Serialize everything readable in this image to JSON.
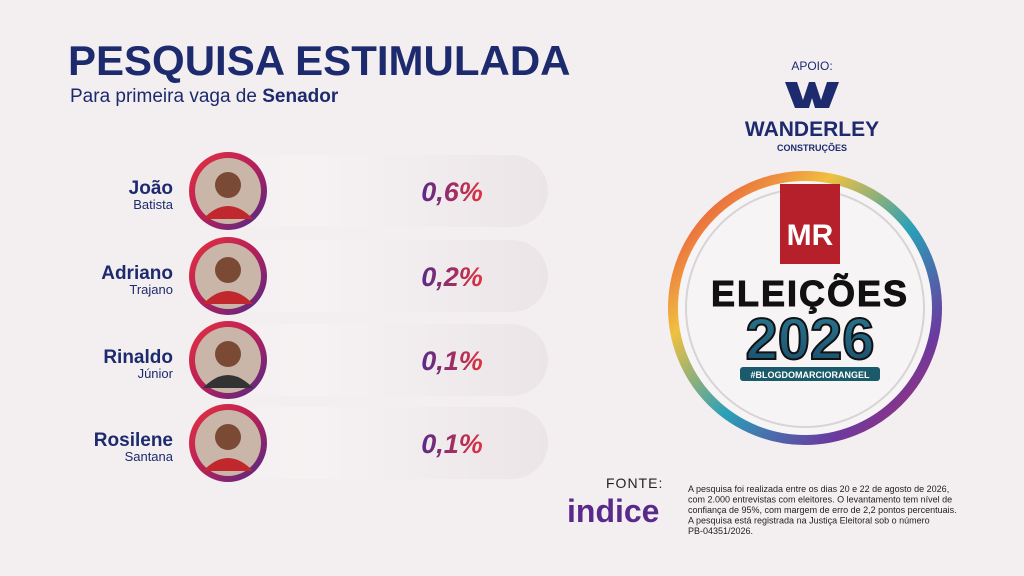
{
  "header": {
    "title": "PESQUISA ESTIMULADA",
    "subtitle": "Para primeira vaga de ",
    "subtitle_bold": "Senador"
  },
  "candidates": [
    {
      "first_name": "João",
      "last_name": "Batista",
      "percent": "0,6%"
    },
    {
      "first_name": "Adriano",
      "last_name": "Trajano",
      "percent": "0,2%"
    },
    {
      "first_name": "Rinaldo",
      "last_name": "Júnior",
      "percent": "0,1%"
    },
    {
      "first_name": "Rosilene",
      "last_name": "Santana",
      "percent": "0,1%"
    }
  ],
  "sponsor": {
    "label": "APOIO:",
    "name": "WANDERLEY",
    "tagline": "CONSTRUÇÕES"
  },
  "badge": {
    "brand": "MR",
    "title": "ELEIÇÕES",
    "year": "2026",
    "hashtag": "#BLOGDOMARCIORANGEL"
  },
  "source": {
    "label": "FONTE:",
    "name": "indice"
  },
  "methodology": [
    "A pesquisa foi realizada entre os dias 20 e 22 de agosto de 2026,",
    "com 2.000 entrevistas com eleitores. O levantamento tem nível de",
    "confiança de 95%, com margem de erro de 2,2 pontos percentuais.",
    "A pesquisa está registrada na Justiça Eleitoral sob o número",
    "PB-04351/2026."
  ]
}
